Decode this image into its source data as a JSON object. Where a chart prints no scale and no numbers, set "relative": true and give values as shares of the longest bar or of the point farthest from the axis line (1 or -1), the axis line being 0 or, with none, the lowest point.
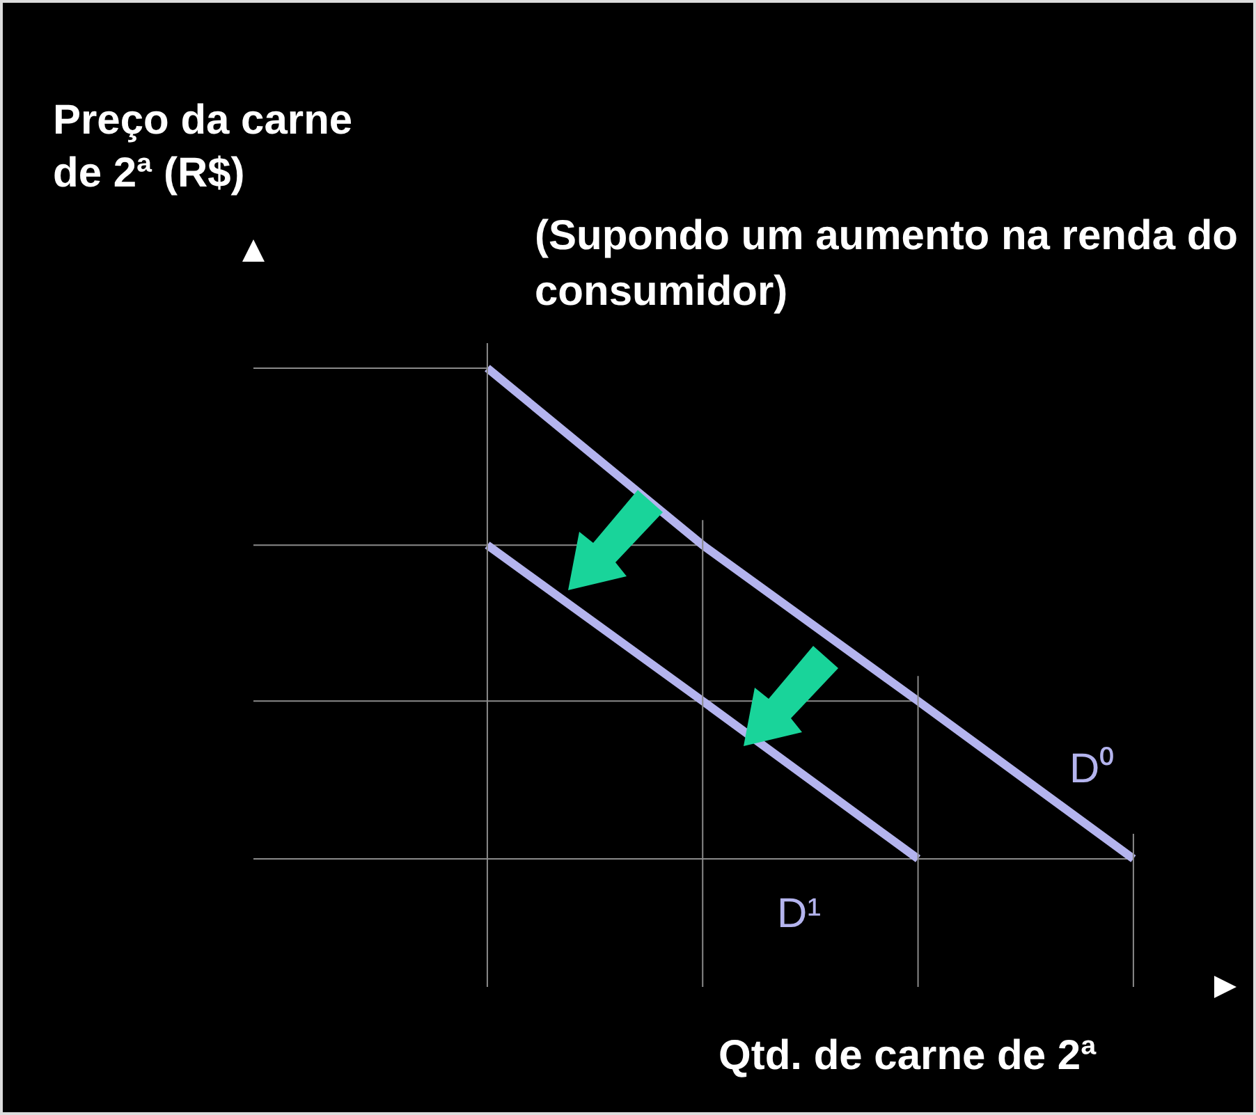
{
  "chart_data": {
    "type": "line",
    "relative": true,
    "title": "(Supondo um aumento na renda do consumidor)",
    "xlabel": "Qtd. de carne de 2ª",
    "ylabel": "Preço da carne de 2ª (R$)",
    "categories": [
      null,
      null,
      null,
      null
    ],
    "marker": "none",
    "line_style": "solid",
    "series": [
      {
        "name": "D⁰",
        "color": "#b4b4ee",
        "values": [
          1,
          0.714,
          0.462,
          0.207
        ]
      },
      {
        "name": "D¹",
        "color": "#b4b4ee",
        "values": [
          0.714,
          0.462,
          0.207,
          null
        ]
      }
    ],
    "ref_lines": [
      {
        "axis": "y",
        "value": 1,
        "color": "#8a8a8a"
      },
      {
        "axis": "y",
        "value": 0.714,
        "color": "#8a8a8a"
      },
      {
        "axis": "y",
        "value": 0.462,
        "color": "#8a8a8a"
      },
      {
        "axis": "y",
        "value": 0.207,
        "color": "#8a8a8a"
      }
    ]
  }
}
